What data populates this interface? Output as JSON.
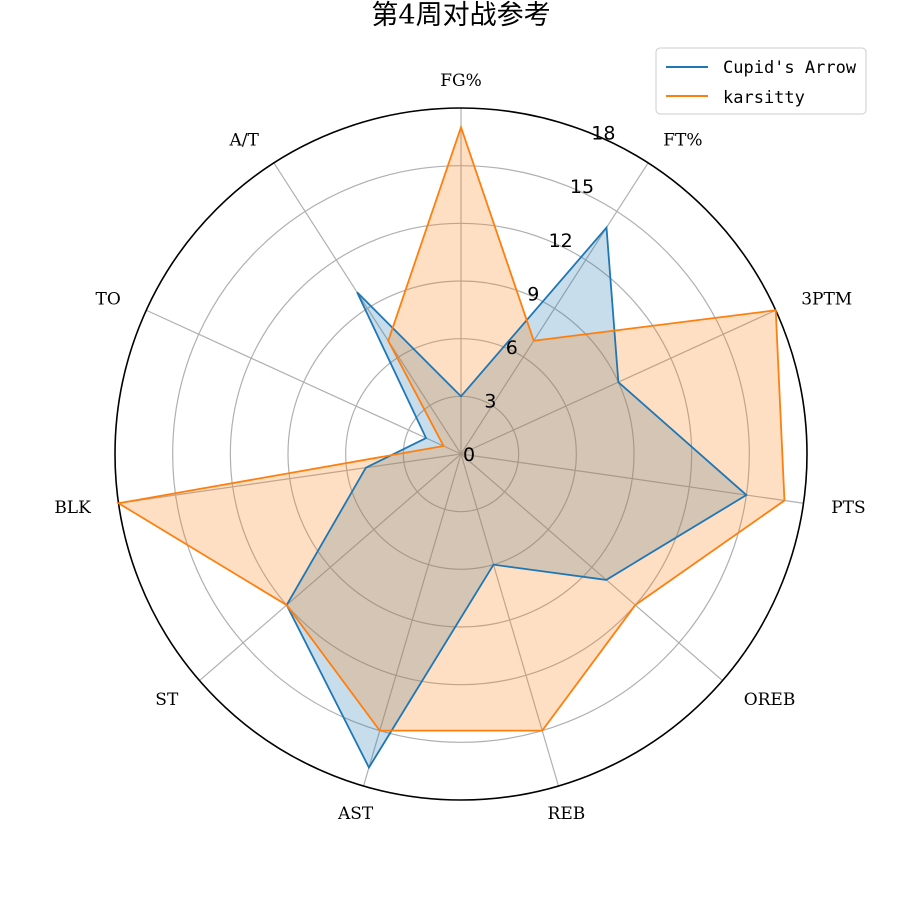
{
  "chart_data": {
    "type": "radar",
    "title": "第4周对战参考",
    "categories": [
      "FG%",
      "FT%",
      "3PTM",
      "PTS",
      "OREB",
      "REB",
      "AST",
      "ST",
      "BLK",
      "TO",
      "A/T"
    ],
    "rlim": [
      0,
      18
    ],
    "rticks": [
      0,
      3,
      6,
      9,
      12,
      15,
      18
    ],
    "rtick_labels": [
      "0",
      "3",
      "6",
      "9",
      "12",
      "15",
      "18"
    ],
    "grid": true,
    "legend_position": "top-right",
    "series": [
      {
        "name": "Cupid's Arrow",
        "color": "#1f77b4",
        "fill": "#1f77b4",
        "values": [
          3,
          14,
          9,
          15,
          10,
          6,
          17,
          12,
          5,
          2,
          10
        ]
      },
      {
        "name": "karsitty",
        "color": "#ff7f0e",
        "fill": "#ff7f0e",
        "values": [
          17,
          7,
          18,
          17,
          12,
          15,
          15,
          12,
          18,
          1,
          7
        ]
      }
    ]
  }
}
